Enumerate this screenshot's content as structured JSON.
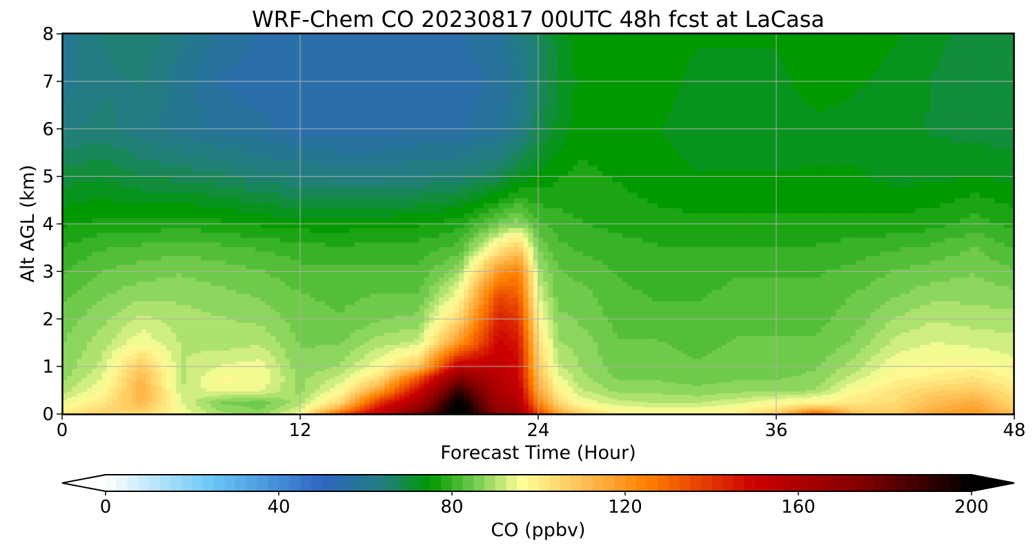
{
  "chart_data": {
    "type": "heatmap",
    "title": "WRF-Chem CO  20230817 00UTC 48h fcst at LaCasa",
    "xlabel": "Forecast Time (Hour)",
    "ylabel": "Alt AGL (km)",
    "xlim": [
      0,
      48
    ],
    "ylim": [
      0,
      8
    ],
    "xticks": [
      "0",
      "12",
      "24",
      "36",
      "48"
    ],
    "yticks": [
      "0",
      "1",
      "2",
      "3",
      "4",
      "5",
      "6",
      "7",
      "8"
    ],
    "grid": true,
    "x_hours": [
      0,
      2,
      4,
      6,
      8,
      10,
      12,
      14,
      16,
      18,
      20,
      22,
      23,
      24,
      25,
      26,
      28,
      30,
      32,
      34,
      36,
      38,
      40,
      42,
      44,
      46,
      48
    ],
    "y_km": [
      0,
      0.1,
      0.25,
      0.5,
      0.75,
      1,
      1.5,
      2,
      2.5,
      3,
      3.5,
      4,
      5,
      6,
      7,
      8
    ],
    "co_ppbv_by_altitude": [
      [
        102,
        106,
        104,
        96,
        90,
        88,
        96,
        135,
        158,
        178,
        205,
        172,
        168,
        140,
        120,
        108,
        100,
        98,
        97,
        100,
        108,
        135,
        110,
        108,
        118,
        120,
        112
      ],
      [
        98,
        104,
        108,
        95,
        88,
        86,
        93,
        118,
        150,
        172,
        205,
        168,
        164,
        132,
        112,
        103,
        96,
        95,
        95,
        97,
        103,
        116,
        106,
        106,
        114,
        118,
        108
      ],
      [
        94,
        101,
        112,
        94,
        86,
        85,
        90,
        104,
        140,
        162,
        202,
        164,
        160,
        124,
        105,
        96,
        92,
        91,
        91,
        93,
        96,
        98,
        101,
        104,
        111,
        115,
        104
      ],
      [
        90,
        96,
        114,
        92,
        95,
        94,
        88,
        96,
        118,
        150,
        190,
        160,
        154,
        116,
        99,
        92,
        88,
        88,
        87,
        88,
        88,
        89,
        97,
        102,
        106,
        108,
        101
      ],
      [
        88,
        94,
        112,
        90,
        97,
        96,
        88,
        92,
        104,
        135,
        175,
        157,
        151,
        112,
        95,
        90,
        86,
        86,
        85,
        86,
        86,
        87,
        93,
        98,
        100,
        102,
        98
      ],
      [
        87,
        92,
        108,
        91,
        94,
        95,
        87,
        89,
        96,
        110,
        155,
        154,
        149,
        108,
        92,
        89,
        85,
        85,
        84,
        85,
        85,
        86,
        90,
        96,
        97,
        98,
        95
      ],
      [
        86,
        90,
        96,
        91,
        90,
        91,
        86,
        86,
        90,
        92,
        120,
        150,
        146,
        103,
        89,
        88,
        84,
        84,
        83,
        84,
        84,
        84,
        87,
        92,
        94,
        93,
        92
      ],
      [
        85,
        88,
        92,
        90,
        89,
        88,
        85,
        84,
        86,
        87,
        105,
        144,
        140,
        98,
        87,
        86,
        83,
        82,
        82,
        83,
        83,
        83,
        85,
        89,
        91,
        90,
        90
      ],
      [
        83,
        86,
        88,
        88,
        87,
        86,
        84,
        83,
        84,
        84,
        96,
        136,
        132,
        94,
        85,
        85,
        82,
        81,
        81,
        82,
        82,
        82,
        84,
        86,
        88,
        88,
        87
      ],
      [
        81,
        84,
        85,
        86,
        85,
        84,
        82,
        82,
        82,
        82,
        88,
        120,
        125,
        90,
        84,
        83,
        81,
        80,
        80,
        81,
        81,
        81,
        82,
        84,
        85,
        86,
        84
      ],
      [
        79,
        81,
        82,
        83,
        82,
        81,
        80,
        79,
        80,
        80,
        82,
        100,
        108,
        86,
        82,
        81,
        80,
        79,
        79,
        79,
        79,
        79,
        80,
        81,
        82,
        84,
        81
      ],
      [
        76,
        77,
        77,
        78,
        77,
        76,
        75,
        75,
        76,
        76,
        78,
        85,
        88,
        82,
        80,
        79,
        78,
        77,
        77,
        77,
        77,
        77,
        77,
        77,
        78,
        80,
        78
      ],
      [
        70,
        71,
        69,
        68,
        67,
        65,
        64,
        63,
        63,
        64,
        65,
        68,
        72,
        74,
        76,
        77,
        76,
        75,
        74,
        74,
        74,
        74,
        74,
        73,
        73,
        74,
        73
      ],
      [
        63,
        65,
        62,
        60,
        58,
        57,
        55,
        55,
        55,
        56,
        56,
        58,
        62,
        68,
        72,
        75,
        75,
        74,
        72,
        72,
        72,
        73,
        73,
        72,
        71,
        70,
        70
      ],
      [
        60,
        63,
        64,
        60,
        56,
        55,
        54,
        54,
        54,
        55,
        55,
        57,
        60,
        66,
        71,
        74,
        75,
        75,
        73,
        73,
        73,
        75,
        74,
        73,
        71,
        70,
        69
      ],
      [
        60,
        64,
        66,
        62,
        58,
        56,
        55,
        55,
        55,
        56,
        56,
        58,
        62,
        67,
        72,
        75,
        76,
        76,
        74,
        74,
        74,
        76,
        75,
        74,
        72,
        70,
        69
      ]
    ],
    "colorbar": {
      "label": "CO  (ppbv)",
      "min": 0,
      "max": 200,
      "ticks": [
        "0",
        "40",
        "80",
        "120",
        "160",
        "200"
      ],
      "extend": "both",
      "palette": [
        {
          "v": 0,
          "c": "#ffffff"
        },
        {
          "v": 25,
          "c": "#66c6f5"
        },
        {
          "v": 50,
          "c": "#2e66c4"
        },
        {
          "v": 65,
          "c": "#218076"
        },
        {
          "v": 75,
          "c": "#009900"
        },
        {
          "v": 87,
          "c": "#86d45a"
        },
        {
          "v": 96,
          "c": "#ffff99"
        },
        {
          "v": 112,
          "c": "#ffb84d"
        },
        {
          "v": 125,
          "c": "#ff8000"
        },
        {
          "v": 150,
          "c": "#cc0000"
        },
        {
          "v": 175,
          "c": "#800000"
        },
        {
          "v": 200,
          "c": "#000000"
        }
      ]
    }
  }
}
